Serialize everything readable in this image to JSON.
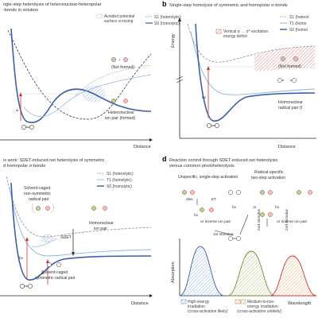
{
  "panels": {
    "a": {
      "letter": "",
      "title_line1": "ngle-step heterolysis of heteronuclear-heteropolar",
      "title_line2": "-bonds in solution",
      "legend_avoided": "Avoided potential",
      "legend_avoided2": "surface crossing",
      "legend_s1": "S1 (heterolytic)",
      "legend_s0": "S0 (homolytic)",
      "label_not_formed": "(Not formed)",
      "label_ion_pair": "Heteronuclear",
      "label_ion_pair2": "ion pair (formed)",
      "delta": "Δ",
      "xlabel": "Distance"
    },
    "b": {
      "letter": "b",
      "title": "Single-step homolysis of symmetric and homopolar σ-bonds",
      "ylabel": "Energy",
      "legend_s1": "S1 (heterol",
      "legend_t1": "T1 (homo",
      "legend_s0": "S0 (homol",
      "deficit1": "Vertical σ → σ* excitation",
      "deficit2": "energy deficit",
      "hv": "hν",
      "label_not_formed": "(Not formed)",
      "label_radical1": "Homonuclear",
      "label_radical2": "radical pair (f",
      "xlabel": "Distance"
    },
    "c": {
      "letter": "",
      "title_line1": "is work: SDET-induced net heterolysis of symmetric",
      "title_line2": "d homopolar σ-bonds",
      "legend_s1": "S1 (heterolytic)",
      "legend_t1": "T1 (homolytic)",
      "legend_s0": "S0 (homolytic)",
      "caged1": "Solvent-caged",
      "caged2": "non-symmetric",
      "caged3": "radical pair",
      "sdet": "SDET",
      "homo_ion1": "Homonuclear",
      "homo_ion2": "ion pair",
      "caged_sym1": "Solvent-caged",
      "caged_sym2": "symmetric radical pair",
      "hv": "hν",
      "delta": "Δ",
      "xlabel": "Distance"
    },
    "d": {
      "letter": "d",
      "title_line1": "Reaction control through SDET-induced net heterolysis",
      "title_line2": "versus common photoheterolysis",
      "unspecific1": "Unspecific, single-step activation",
      "radical1": "Radical-specific",
      "radical2": "two-step activation",
      "diss": "diss.",
      "et": "ET",
      "hv": "hν",
      "inverse1": "or inverse ion pair",
      "inverse2": "or inverse ion pair",
      "or": "or",
      "stim1": "1st stimulus",
      "stim2": "2nd stimulus",
      "ylabel": "Absorption",
      "legend_high1": "High-energy",
      "legend_high2": "irradiation",
      "legend_high3": "(cross-activation likely)",
      "legend_med1": "Medium-to-low-",
      "legend_med2": "energy irradiation",
      "legend_med3": "(cross-activation unlikely)",
      "legend_wave": "Wavelength"
    }
  },
  "colors": {
    "blue": "#3b5fa8",
    "lightblue": "#8fb3e0",
    "gray": "#9a9a9a",
    "darkgray": "#555555",
    "red": "#d9302c",
    "green": "#7a8a2e",
    "pink": "#e9a0a0"
  }
}
